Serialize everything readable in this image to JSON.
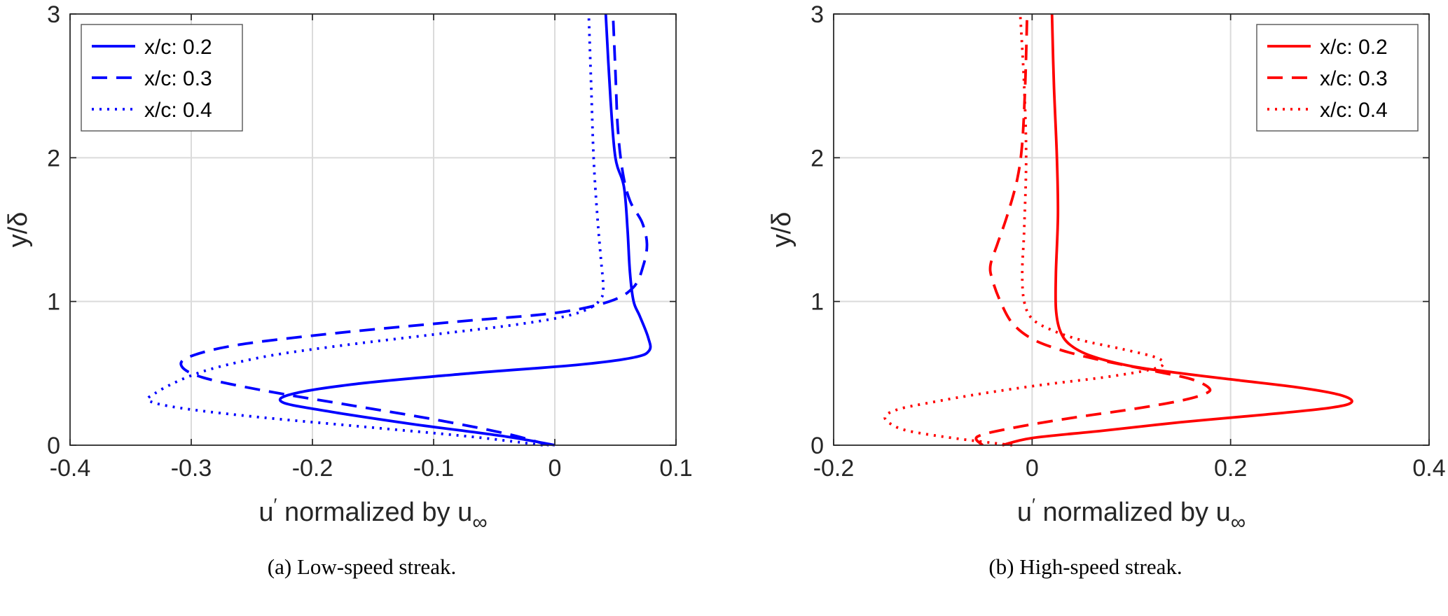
{
  "chart_data": [
    {
      "type": "line",
      "panel": "a",
      "caption": "(a) Low-speed streak.",
      "xlabel": "u′ normalized by u∞",
      "xlabel_parts": {
        "base1": "u",
        "sup": "′",
        "base2": " normalized by u",
        "sub": "∞"
      },
      "ylabel": "y/δ",
      "xlim": [
        -0.4,
        0.1
      ],
      "ylim": [
        0,
        3
      ],
      "xticks": [
        -0.4,
        -0.3,
        -0.2,
        -0.1,
        0,
        0.1
      ],
      "xtick_labels": [
        "-0.4",
        "-0.3",
        "-0.2",
        "-0.1",
        "0",
        "0.1"
      ],
      "yticks": [
        0,
        1,
        2,
        3
      ],
      "ytick_labels": [
        "0",
        "1",
        "2",
        "3"
      ],
      "grid": true,
      "legend_position": "northwest",
      "color": "#0000FF",
      "series": [
        {
          "name": "x/c: 0.2",
          "linestyle": "solid",
          "points_uy": [
            [
              0.0,
              0
            ],
            [
              -0.04,
              0.06
            ],
            [
              -0.12,
              0.15
            ],
            [
              -0.19,
              0.24
            ],
            [
              -0.225,
              0.3
            ],
            [
              -0.215,
              0.36
            ],
            [
              -0.16,
              0.43
            ],
            [
              -0.07,
              0.5
            ],
            [
              0.02,
              0.56
            ],
            [
              0.065,
              0.61
            ],
            [
              0.078,
              0.66
            ],
            [
              0.077,
              0.75
            ],
            [
              0.07,
              0.9
            ],
            [
              0.065,
              1.0
            ],
            [
              0.062,
              1.2
            ],
            [
              0.06,
              1.5
            ],
            [
              0.057,
              1.8
            ],
            [
              0.05,
              2.0
            ],
            [
              0.046,
              2.4
            ],
            [
              0.042,
              3.0
            ]
          ]
        },
        {
          "name": "x/c: 0.3",
          "linestyle": "dashed",
          "points_uy": [
            [
              -0.005,
              0
            ],
            [
              -0.04,
              0.08
            ],
            [
              -0.1,
              0.18
            ],
            [
              -0.17,
              0.28
            ],
            [
              -0.24,
              0.38
            ],
            [
              -0.29,
              0.47
            ],
            [
              -0.308,
              0.55
            ],
            [
              -0.3,
              0.62
            ],
            [
              -0.26,
              0.7
            ],
            [
              -0.18,
              0.78
            ],
            [
              -0.08,
              0.86
            ],
            [
              0.0,
              0.92
            ],
            [
              0.045,
              1.0
            ],
            [
              0.065,
              1.1
            ],
            [
              0.073,
              1.25
            ],
            [
              0.076,
              1.4
            ],
            [
              0.072,
              1.55
            ],
            [
              0.062,
              1.7
            ],
            [
              0.056,
              1.9
            ],
            [
              0.052,
              2.2
            ],
            [
              0.05,
              2.6
            ],
            [
              0.048,
              3.0
            ]
          ]
        },
        {
          "name": "x/c: 0.4",
          "linestyle": "dotted",
          "points_uy": [
            [
              -0.01,
              0
            ],
            [
              -0.07,
              0.06
            ],
            [
              -0.16,
              0.13
            ],
            [
              -0.25,
              0.2
            ],
            [
              -0.31,
              0.26
            ],
            [
              -0.335,
              0.31
            ],
            [
              -0.33,
              0.36
            ],
            [
              -0.315,
              0.43
            ],
            [
              -0.295,
              0.5
            ],
            [
              -0.27,
              0.56
            ],
            [
              -0.23,
              0.63
            ],
            [
              -0.17,
              0.7
            ],
            [
              -0.1,
              0.77
            ],
            [
              -0.04,
              0.83
            ],
            [
              0.005,
              0.89
            ],
            [
              0.028,
              0.95
            ],
            [
              0.038,
              1.02
            ],
            [
              0.04,
              1.1
            ],
            [
              0.038,
              1.3
            ],
            [
              0.035,
              1.6
            ],
            [
              0.032,
              2.0
            ],
            [
              0.03,
              2.5
            ],
            [
              0.028,
              3.0
            ]
          ]
        }
      ]
    },
    {
      "type": "line",
      "panel": "b",
      "caption": "(b) High-speed streak.",
      "xlabel": "u′ normalized by u∞",
      "xlabel_parts": {
        "base1": "u",
        "sup": "′",
        "base2": " normalized by u",
        "sub": "∞"
      },
      "ylabel": "y/δ",
      "xlim": [
        -0.2,
        0.4
      ],
      "ylim": [
        0,
        3
      ],
      "xticks": [
        -0.2,
        0,
        0.2,
        0.4
      ],
      "xtick_labels": [
        "-0.2",
        "0",
        "0.2",
        "0.4"
      ],
      "yticks": [
        0,
        1,
        2,
        3
      ],
      "ytick_labels": [
        "0",
        "1",
        "2",
        "3"
      ],
      "grid": true,
      "legend_position": "northeast",
      "color": "#FF0000",
      "series": [
        {
          "name": "x/c: 0.2",
          "linestyle": "solid",
          "points_uy": [
            [
              -0.03,
              0
            ],
            [
              0.0,
              0.05
            ],
            [
              0.07,
              0.1
            ],
            [
              0.15,
              0.16
            ],
            [
              0.23,
              0.21
            ],
            [
              0.3,
              0.26
            ],
            [
              0.322,
              0.3
            ],
            [
              0.31,
              0.35
            ],
            [
              0.27,
              0.4
            ],
            [
              0.21,
              0.45
            ],
            [
              0.15,
              0.5
            ],
            [
              0.1,
              0.55
            ],
            [
              0.06,
              0.62
            ],
            [
              0.038,
              0.7
            ],
            [
              0.028,
              0.8
            ],
            [
              0.024,
              0.95
            ],
            [
              0.024,
              1.2
            ],
            [
              0.026,
              1.6
            ],
            [
              0.025,
              2.0
            ],
            [
              0.022,
              2.5
            ],
            [
              0.02,
              3.0
            ]
          ]
        },
        {
          "name": "x/c: 0.3",
          "linestyle": "dashed",
          "points_uy": [
            [
              -0.05,
              0
            ],
            [
              -0.055,
              0.06
            ],
            [
              -0.02,
              0.12
            ],
            [
              0.04,
              0.19
            ],
            [
              0.1,
              0.25
            ],
            [
              0.15,
              0.31
            ],
            [
              0.175,
              0.36
            ],
            [
              0.178,
              0.4
            ],
            [
              0.16,
              0.46
            ],
            [
              0.12,
              0.52
            ],
            [
              0.07,
              0.59
            ],
            [
              0.03,
              0.66
            ],
            [
              0.0,
              0.74
            ],
            [
              -0.02,
              0.85
            ],
            [
              -0.032,
              1.0
            ],
            [
              -0.04,
              1.15
            ],
            [
              -0.042,
              1.25
            ],
            [
              -0.035,
              1.4
            ],
            [
              -0.025,
              1.6
            ],
            [
              -0.015,
              1.85
            ],
            [
              -0.01,
              2.1
            ],
            [
              -0.007,
              2.5
            ],
            [
              -0.005,
              3.0
            ]
          ]
        },
        {
          "name": "x/c: 0.4",
          "linestyle": "dotted",
          "points_uy": [
            [
              -0.02,
              0
            ],
            [
              -0.08,
              0.05
            ],
            [
              -0.125,
              0.1
            ],
            [
              -0.143,
              0.15
            ],
            [
              -0.148,
              0.2
            ],
            [
              -0.135,
              0.25
            ],
            [
              -0.1,
              0.3
            ],
            [
              -0.05,
              0.36
            ],
            [
              0.01,
              0.42
            ],
            [
              0.07,
              0.47
            ],
            [
              0.115,
              0.52
            ],
            [
              0.132,
              0.56
            ],
            [
              0.125,
              0.61
            ],
            [
              0.09,
              0.67
            ],
            [
              0.05,
              0.73
            ],
            [
              0.02,
              0.8
            ],
            [
              0.0,
              0.88
            ],
            [
              -0.008,
              1.0
            ],
            [
              -0.01,
              1.2
            ],
            [
              -0.008,
              1.5
            ],
            [
              -0.006,
              2.0
            ],
            [
              -0.008,
              2.5
            ],
            [
              -0.012,
              3.0
            ]
          ]
        }
      ]
    }
  ]
}
